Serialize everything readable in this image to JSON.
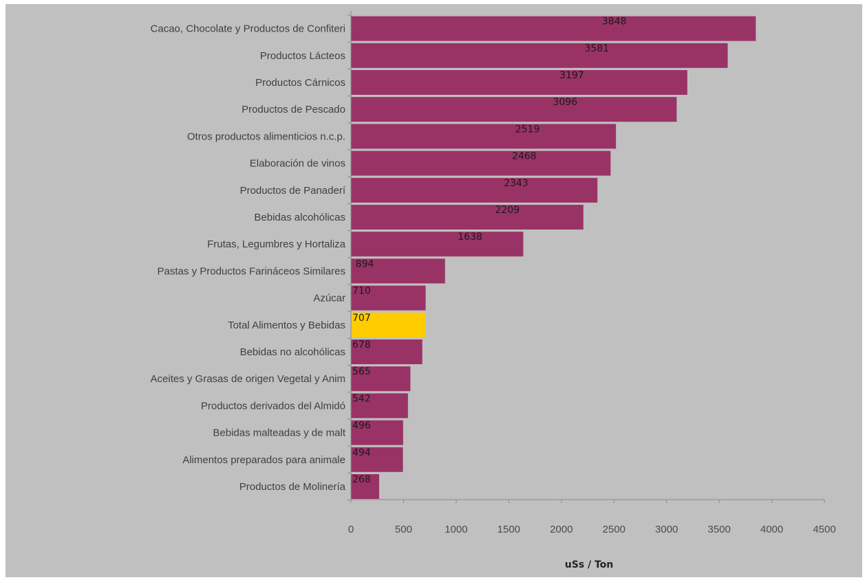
{
  "chart_data": {
    "type": "bar",
    "orientation": "horizontal",
    "title": "",
    "xlabel": "uSs / Ton",
    "ylabel": "",
    "xlim": [
      0,
      4500
    ],
    "xticks": [
      0,
      500,
      1000,
      1500,
      2000,
      2500,
      3000,
      3500,
      4000,
      4500
    ],
    "grid": false,
    "legend": "none",
    "bar_color": "#993366",
    "highlight_color": "#ffcc00",
    "categories": [
      "Cacao, Chocolate y Productos de Confiteri",
      "Productos Lácteos",
      "Productos Cárnicos",
      "Productos de Pescado",
      "Otros productos alimenticios n.c.p.",
      "Elaboración de vinos",
      "Productos de Panaderí",
      "Bebidas alcohólicas",
      "Frutas, Legumbres y Hortaliza",
      "Pastas y Productos Farináceos Similares",
      "Azúcar",
      "Total Alimentos y Bebidas",
      "Bebidas no alcohólicas",
      "Aceites y Grasas de origen Vegetal y Anim",
      "Productos derivados del Almidó",
      "Bebidas malteadas y de malt",
      "Alimentos preparados para animale",
      "Productos de Molinería"
    ],
    "values": [
      3848,
      3581,
      3197,
      3096,
      2519,
      2468,
      2343,
      2209,
      1638,
      894,
      710,
      707,
      678,
      565,
      542,
      496,
      494,
      268
    ],
    "value_labels": [
      "3848",
      "3581",
      "3197",
      "3096",
      "2519",
      "2468",
      "2343",
      "2209",
      "1638",
      "894",
      "710",
      "707",
      "678",
      "565",
      "542",
      "496",
      "494",
      "268"
    ],
    "highlight": "Total Alimentos y Bebidas"
  }
}
